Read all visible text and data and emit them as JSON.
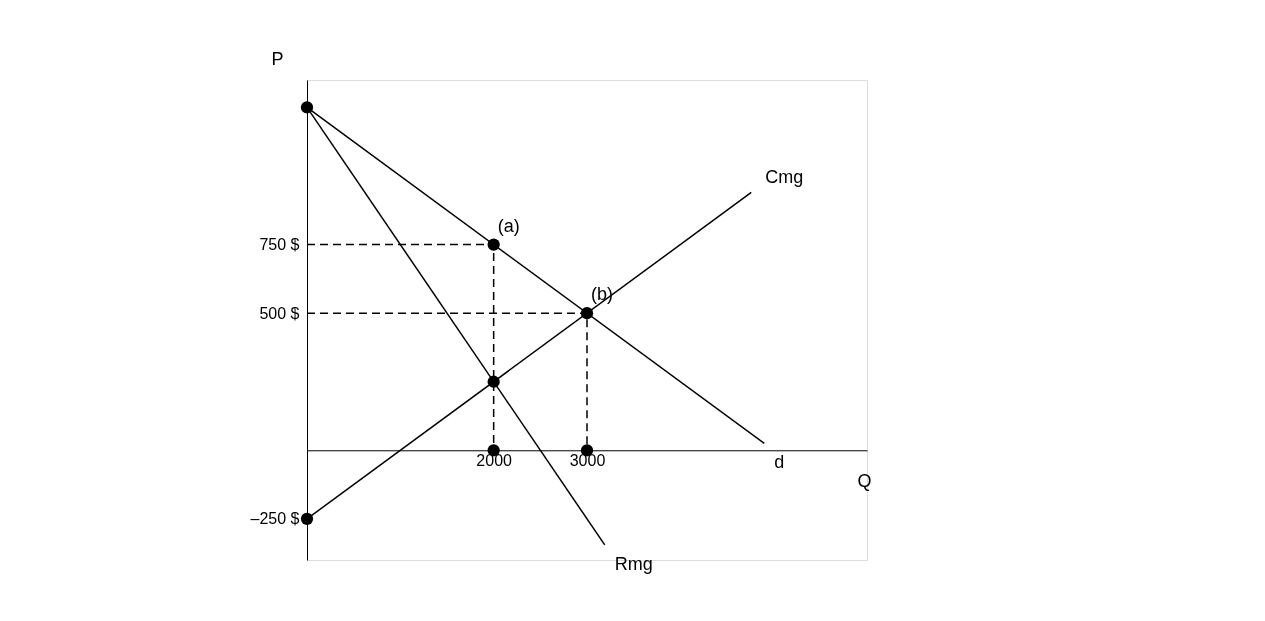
{
  "chart_data": {
    "type": "line",
    "xlabel": "Q",
    "ylabel": "P",
    "xlim": [
      0,
      6000
    ],
    "ylim": [
      -400,
      1350
    ],
    "xticks": [
      2000,
      3000
    ],
    "yticks": [
      {
        "value": 750,
        "label": "750 $"
      },
      {
        "value": 500,
        "label": "500 $"
      },
      {
        "value": -250,
        "label": "–250 $"
      }
    ],
    "grid": false,
    "series": [
      {
        "name": "d",
        "color": "#000000",
        "x": [
          0,
          4900
        ],
        "values": [
          1250,
          25
        ]
      },
      {
        "name": "Rmg",
        "color": "#000000",
        "x": [
          0,
          3190
        ],
        "values": [
          1250,
          -345
        ]
      },
      {
        "name": "Cmg",
        "color": "#000000",
        "x": [
          0,
          4760
        ],
        "values": [
          -250,
          940
        ]
      },
      {
        "color": "#000000",
        "line_style": "dashed",
        "x": [
          0,
          2000,
          2000
        ],
        "values": [
          750,
          750,
          0
        ]
      },
      {
        "color": "#000000",
        "line_style": "dashed",
        "x": [
          0,
          3000,
          3000
        ],
        "values": [
          500,
          500,
          0
        ]
      },
      {
        "type": "scatter",
        "marker": "circle",
        "color": "#000000",
        "x": [
          0,
          2000,
          3000,
          2000,
          2000,
          3000,
          0
        ],
        "values": [
          1250,
          750,
          500,
          250,
          0,
          0,
          -250
        ]
      }
    ],
    "annotations": [
      {
        "text": "(a)",
        "x": 2000,
        "y": 750
      },
      {
        "text": "(b)",
        "x": 3000,
        "y": 500
      }
    ]
  }
}
